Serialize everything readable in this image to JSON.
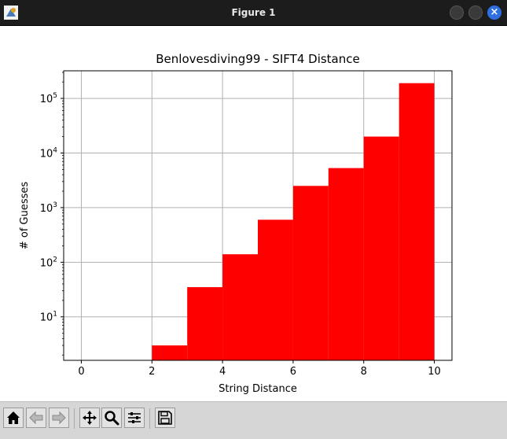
{
  "window": {
    "title": "Figure 1"
  },
  "toolbar": {
    "buttons": [
      "home-icon",
      "back-arrow-icon",
      "forward-arrow-icon",
      "pan-icon",
      "zoom-icon",
      "configure-subplots-icon",
      "save-icon"
    ]
  },
  "colors": {
    "bar": "#ff0000",
    "grid": "#b0b0b0",
    "titlebar": "#1c1c1c",
    "close_button": "#2f6fe0"
  },
  "chart_data": {
    "type": "bar",
    "title": "Benlovesdiving99 - SIFT4 Distance",
    "xlabel": "String Distance",
    "ylabel": "# of Guesses",
    "yscale": "log",
    "grid": true,
    "xlim": [
      -0.5,
      10.5
    ],
    "ylim": [
      1.6,
      320000
    ],
    "xticks": [
      0,
      2,
      4,
      6,
      8,
      10
    ],
    "xtick_labels": [
      "0",
      "2",
      "4",
      "6",
      "8",
      "10"
    ],
    "yticks": [
      10,
      100,
      1000,
      10000,
      100000
    ],
    "ytick_labels": [
      {
        "base": "10",
        "exp": "1"
      },
      {
        "base": "10",
        "exp": "2"
      },
      {
        "base": "10",
        "exp": "3"
      },
      {
        "base": "10",
        "exp": "4"
      },
      {
        "base": "10",
        "exp": "5"
      }
    ],
    "bins": [
      {
        "start": 2,
        "end": 3,
        "value": 3
      },
      {
        "start": 3,
        "end": 4,
        "value": 35
      },
      {
        "start": 4,
        "end": 5,
        "value": 140
      },
      {
        "start": 5,
        "end": 6,
        "value": 600
      },
      {
        "start": 6,
        "end": 7,
        "value": 2500
      },
      {
        "start": 7,
        "end": 8,
        "value": 5300
      },
      {
        "start": 8,
        "end": 9,
        "value": 20000
      },
      {
        "start": 9,
        "end": 10,
        "value": 190000
      }
    ]
  }
}
